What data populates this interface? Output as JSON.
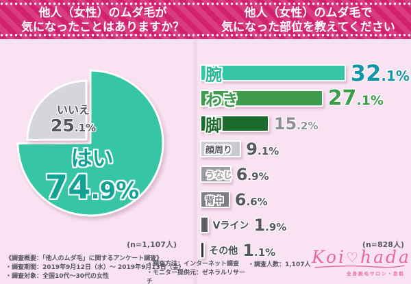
{
  "header": {
    "left_title_line1": "他人（女性）のムダ毛が",
    "left_title_line2": "気になったことはありますか？",
    "right_title_line1": "他人（女性）のムダ毛で",
    "right_title_line2": "気になった部位を教えてください"
  },
  "colors": {
    "band_base": "#d1216f",
    "band_stripe": "#da3c82",
    "page_bg": "#f4d6ea",
    "panel_bg": "#f9e3f2",
    "pie_yes": "#36c6a6",
    "pie_no": "#d6d5da",
    "logo_pink": "#e8679c"
  },
  "chart_data": [
    {
      "type": "pie",
      "title": "他人（女性）のムダ毛が気になったことはありますか？",
      "labels": [
        "はい",
        "いいえ"
      ],
      "values": [
        74.9,
        25.1
      ],
      "slices": [
        {
          "label": "はい",
          "value": 74.9,
          "value_int": "74",
          "value_frac": ".9%",
          "color": "#36c6a6",
          "text_color": "#13a395"
        },
        {
          "label": "いいえ",
          "value": 25.1,
          "value_int": "25",
          "value_frac": ".1%",
          "color": "#d6d5da",
          "text_color": "#55555f"
        }
      ],
      "sample_note": "(n=1,107人)"
    },
    {
      "type": "bar",
      "title": "他人（女性）のムダ毛で気になった部位を教えてください",
      "categories": [
        "腕",
        "わき",
        "脚",
        "顔周り",
        "うなじ",
        "背中",
        "Vライン",
        "その他"
      ],
      "values": [
        32.1,
        27.1,
        15.2,
        9.1,
        6.9,
        6.6,
        1.9,
        1.1
      ],
      "xlim": [
        0,
        35
      ],
      "bars": [
        {
          "label": "腕",
          "value": 32.1,
          "value_int": "32",
          "value_frac": ".1%",
          "bar_color": "#36c6a6",
          "label_color": "#2ab899",
          "value_color": "#1295a7",
          "label_inside": true,
          "label_size": "big",
          "value_size": "v1"
        },
        {
          "label": "わき",
          "value": 27.1,
          "value_int": "27",
          "value_frac": ".1%",
          "bar_color": "#3f9b4d",
          "label_color": "#3f9b4d",
          "value_color": "#3a9e4b",
          "label_inside": true,
          "label_size": "big",
          "value_size": "v2"
        },
        {
          "label": "脚",
          "value": 15.2,
          "value_int": "15",
          "value_frac": ".2%",
          "bar_color": "#1a6b2c",
          "label_color": "#1a6b2c",
          "value_color": "#8e8e99",
          "label_inside": true,
          "label_size": "big",
          "value_size": "v3"
        },
        {
          "label": "顔周り",
          "value": 9.1,
          "value_int": "9",
          "value_frac": ".1%",
          "bar_color": "#c9c9ce",
          "label_color": "#5a5a64",
          "value_color": "#565661",
          "label_inside": true,
          "label_size": "small",
          "value_size": "v3"
        },
        {
          "label": "うなじ",
          "value": 6.9,
          "value_int": "6",
          "value_frac": ".9%",
          "bar_color": "#9b9ba2",
          "label_color": "#9b9ba2",
          "value_color": "#565661",
          "label_inside": true,
          "label_size": "small",
          "value_size": "v3"
        },
        {
          "label": "背中",
          "value": 6.6,
          "value_int": "6",
          "value_frac": ".6%",
          "bar_color": "#7e7e85",
          "label_color": "#7e7e85",
          "value_color": "#565661",
          "label_inside": true,
          "label_size": "small",
          "value_size": "v3"
        },
        {
          "label": "Vライン",
          "value": 1.9,
          "value_int": "1",
          "value_frac": ".9%",
          "bar_color": "#60606a",
          "label_color": "#4c4c56",
          "value_color": "#565661",
          "label_inside": false,
          "label_size": "small",
          "value_size": "v3"
        },
        {
          "label": "その他",
          "value": 1.1,
          "value_int": "1",
          "value_frac": ".1%",
          "bar_color": "#2c2c32",
          "label_color": "#4c4c56",
          "value_color": "#565661",
          "label_inside": false,
          "label_size": "small",
          "value_size": "v3"
        }
      ],
      "sample_note": "(n=828人)"
    }
  ],
  "footer": {
    "col1_line1": "《調査概要：「他人のムダ毛」に関するアンケート調査》",
    "col1_line2": "・調査期間：2019年9月12日（水）～ 2019年9月13日（金）",
    "col1_line3": "・調査対象：全国10代～30代の女性",
    "col2_line1": "・調査方法：インターネット調査",
    "col2_line2": "・モニター提供元：ゼネラルリサーチ",
    "col3_line1": "・調査人数：1,107人"
  },
  "logo": {
    "text_left": "Koi",
    "heart": "♡",
    "text_right": "hada",
    "tagline": "全身脱毛サロン・恋肌"
  }
}
